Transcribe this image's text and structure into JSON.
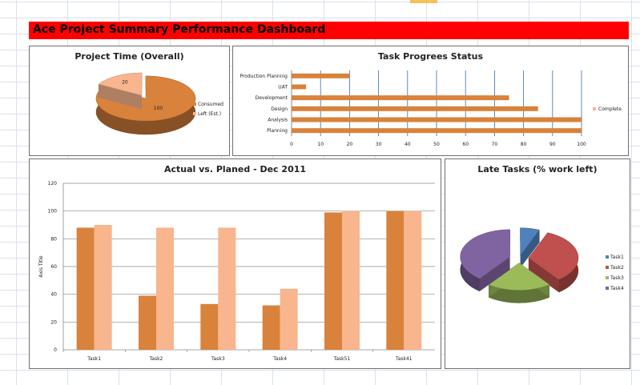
{
  "sheet": {
    "highlight_color": "#f6c15a"
  },
  "dashboard_title": "Ace Project Summary Performance Dashboard",
  "colors": {
    "banner": "#ff0000",
    "orange": "#d9823b",
    "peach": "#f8b58e"
  },
  "chart_data": [
    {
      "type": "pie",
      "title": "Project Time (Overall)",
      "labels": [
        "Consumed",
        "Left (Est.)"
      ],
      "values": [
        100,
        20
      ],
      "colors": [
        "#d9823b",
        "#f8b58e"
      ],
      "legend": "right"
    },
    {
      "type": "bar",
      "orientation": "horizontal",
      "title": "Task Progrees Status",
      "categories": [
        "Production Planning",
        "UAT",
        "Development",
        "Design",
        "Analysis",
        "Planning"
      ],
      "series": [
        {
          "name": "Complete",
          "values": [
            20,
            5,
            75,
            85,
            100,
            100
          ]
        }
      ],
      "xlim": [
        0,
        100
      ],
      "xticks": [
        "0",
        "10",
        "20",
        "30",
        "40",
        "50",
        "60",
        "70",
        "80",
        "90",
        "100"
      ],
      "grid": true,
      "legend": "right"
    },
    {
      "type": "bar",
      "title": "Actual vs. Planed - Dec 2011",
      "ylabel": "Axis Title",
      "categories": [
        "Task1",
        "Task2",
        "Task3",
        "Task4",
        "Task51",
        "Task41"
      ],
      "series": [
        {
          "values": [
            88,
            39,
            33,
            32,
            99,
            100
          ]
        },
        {
          "values": [
            90,
            88,
            88,
            44,
            100,
            100
          ]
        }
      ],
      "ylim": [
        0,
        120
      ],
      "yticks": [
        "0",
        "20",
        "40",
        "60",
        "80",
        "100",
        "120"
      ],
      "grid": true
    },
    {
      "type": "pie",
      "title": "Late Tasks (% work left)",
      "labels": [
        "Task1",
        "Task2",
        "Task3",
        "Task4"
      ],
      "values": [
        6,
        32,
        20,
        38
      ],
      "colors": [
        "#4f81bd",
        "#c0504d",
        "#9bbb59",
        "#8064a2"
      ],
      "legend": "right"
    }
  ]
}
